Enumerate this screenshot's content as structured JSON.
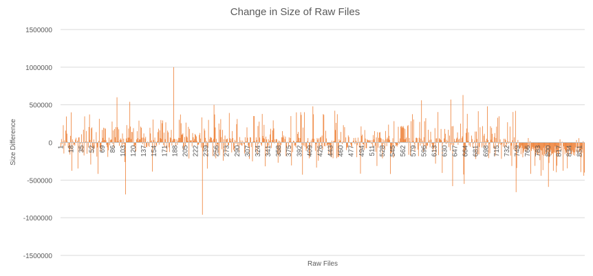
{
  "chart_data": {
    "type": "bar",
    "title": "Change in Size of Raw Files",
    "xlabel": "Raw Files",
    "ylabel": "Size Difference",
    "ylim": [
      -1500000,
      1500000
    ],
    "yticks": [
      1500000,
      1000000,
      500000,
      0,
      -500000,
      -1000000,
      -1500000
    ],
    "ytick_labels": [
      "1500000",
      "1000000",
      "500000",
      "0",
      "-500000",
      "-1000000",
      "-1500000"
    ],
    "grid": true,
    "legend": "none",
    "bar_color": "#ED7D31",
    "x_first": 1,
    "x_last": 859,
    "x_tick_labels": [
      "1",
      "18",
      "35",
      "52",
      "69",
      "86",
      "103",
      "120",
      "137",
      "154",
      "171",
      "188",
      "205",
      "222",
      "239",
      "256",
      "273",
      "290",
      "307",
      "324",
      "341",
      "358",
      "375",
      "392",
      "409",
      "426",
      "443",
      "460",
      "477",
      "494",
      "511",
      "528",
      "545",
      "562",
      "579",
      "596",
      "613",
      "630",
      "647",
      "664",
      "681",
      "698",
      "715",
      "732",
      "749",
      "766",
      "783",
      "800",
      "817",
      "834",
      "851"
    ],
    "notable_values": [
      {
        "x": 93,
        "y": 600000
      },
      {
        "x": 107,
        "y": -690000
      },
      {
        "x": 114,
        "y": 540000
      },
      {
        "x": 186,
        "y": 1000000
      },
      {
        "x": 233,
        "y": -960000
      },
      {
        "x": 252,
        "y": 500000
      },
      {
        "x": 414,
        "y": 480000
      },
      {
        "x": 592,
        "y": 560000
      },
      {
        "x": 640,
        "y": 570000
      },
      {
        "x": 643,
        "y": -580000
      },
      {
        "x": 660,
        "y": 630000
      },
      {
        "x": 662,
        "y": -550000
      },
      {
        "x": 700,
        "y": 480000
      },
      {
        "x": 747,
        "y": -660000
      },
      {
        "x": 800,
        "y": -590000
      }
    ]
  }
}
